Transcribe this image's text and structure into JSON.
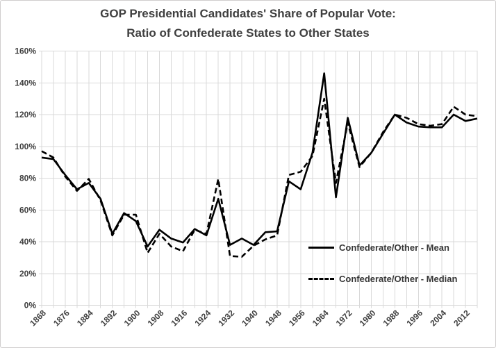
{
  "title": {
    "line1": "GOP Presidential Candidates' Share of Popular Vote:",
    "line2": "Ratio of Confederate States to Other States"
  },
  "chart_data": {
    "type": "line",
    "title": "GOP Presidential Candidates' Share of Popular Vote: Ratio of Confederate States to Other States",
    "x": [
      1868,
      1872,
      1876,
      1880,
      1884,
      1888,
      1892,
      1896,
      1900,
      1904,
      1908,
      1912,
      1916,
      1920,
      1924,
      1928,
      1932,
      1936,
      1940,
      1944,
      1948,
      1952,
      1956,
      1960,
      1964,
      1968,
      1972,
      1976,
      1980,
      1984,
      1988,
      1992,
      1996,
      2000,
      2004,
      2008,
      2012,
      2016
    ],
    "series": [
      {
        "name": "Confederate/Other - Mean",
        "style": "solid",
        "values": [
          93,
          92,
          82,
          73,
          77,
          67,
          45,
          58,
          53,
          37,
          47.5,
          42,
          39.5,
          48,
          44,
          67,
          38,
          42,
          38,
          46,
          46.5,
          78,
          73,
          96,
          146,
          68,
          118,
          88,
          96,
          108,
          120,
          115,
          112.5,
          112,
          112,
          120,
          116,
          117.5
        ]
      },
      {
        "name": "Confederate/Other - Median",
        "style": "dashed",
        "values": [
          97,
          93,
          81,
          72,
          79.5,
          66,
          44,
          57,
          57,
          33,
          45,
          37,
          34,
          47.5,
          45,
          79.5,
          31,
          30.5,
          37.5,
          41.5,
          44,
          82,
          84,
          94,
          130,
          77,
          115,
          87,
          96,
          109,
          120,
          118,
          114,
          113,
          114,
          125,
          120,
          119
        ]
      }
    ],
    "ylim": [
      0,
      160
    ],
    "ytick_step": 20,
    "ytick_labels": [
      "0%",
      "20%",
      "40%",
      "60%",
      "80%",
      "100%",
      "120%",
      "140%",
      "160%"
    ],
    "xtick_labels": [
      "1868",
      "1876",
      "1884",
      "1892",
      "1900",
      "1908",
      "1916",
      "1924",
      "1932",
      "1940",
      "1948",
      "1956",
      "1964",
      "1972",
      "1980",
      "1988",
      "1996",
      "2004",
      "2012"
    ],
    "grid": true,
    "legend_position": "inside-right",
    "line_color": "#000000",
    "grid_color": "#d9d9d9",
    "label_color": "#404040"
  }
}
